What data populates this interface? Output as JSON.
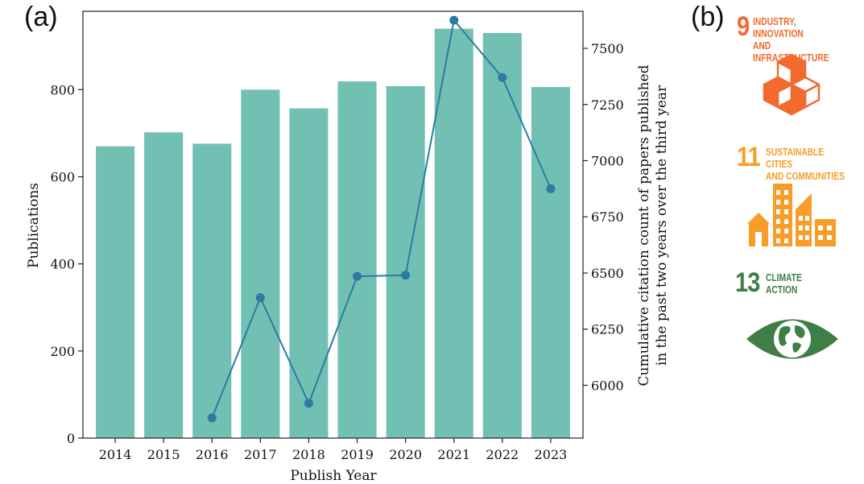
{
  "panels": {
    "a_label": "(a)",
    "b_label": "(b)"
  },
  "chart_data": {
    "type": "bar",
    "categories": [
      "2014",
      "2015",
      "2016",
      "2017",
      "2018",
      "2019",
      "2020",
      "2021",
      "2022",
      "2023"
    ],
    "series": [
      {
        "type": "bar",
        "axis": "left",
        "values": [
          670,
          702,
          676,
          800,
          757,
          819,
          808,
          940,
          930,
          806
        ]
      },
      {
        "type": "line",
        "axis": "right",
        "x": [
          "2016",
          "2017",
          "2018",
          "2019",
          "2020",
          "2021",
          "2022",
          "2023"
        ],
        "values": [
          5855,
          6390,
          5920,
          6485,
          6490,
          7625,
          7370,
          6875
        ]
      }
    ],
    "xlabel": "Publish Year",
    "ylabel": "Publications",
    "y2label_line1": "Cumulative citation count of papers published",
    "y2label_line2": "in the past two years over the third year",
    "ylim": [
      0,
      980
    ],
    "y2lim": [
      5765,
      7665
    ],
    "yticks": [
      0,
      200,
      400,
      600,
      800
    ],
    "y2ticks": [
      6000,
      6250,
      6500,
      6750,
      7000,
      7250,
      7500
    ],
    "bar_color": "#72bfb4",
    "line_color": "#2a7ca3",
    "grid": false
  },
  "sdg": [
    {
      "number": "9",
      "title": "INDUSTRY, INNOVATION\nAND INFRASTRUCTURE",
      "color": "#f26a2e",
      "icon": "cubes-icon"
    },
    {
      "number": "11",
      "title": "SUSTAINABLE CITIES\nAND COMMUNITIES",
      "color": "#f89d2a",
      "icon": "city-icon"
    },
    {
      "number": "13",
      "title": "CLIMATE\nACTION",
      "color": "#3f7e44",
      "icon": "eye-globe-icon"
    }
  ]
}
